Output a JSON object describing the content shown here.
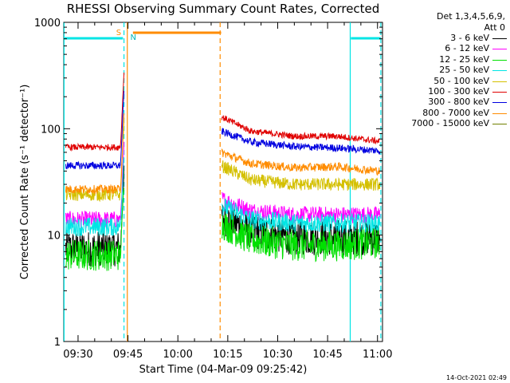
{
  "chart_data": {
    "type": "line",
    "title": "RHESSI Observing Summary Count Rates, Corrected",
    "xlabel": "Start Time (04-Mar-09 09:25:42)",
    "ylabel": "Corrected Count Rate (s⁻¹ detector⁻¹)",
    "yscale": "log",
    "ylim": [
      1,
      1000
    ],
    "ytick_labels": [
      "1",
      "10",
      "100",
      "1000"
    ],
    "xtick_labels": [
      "09:30",
      "09:45",
      "10:00",
      "10:15",
      "10:30",
      "10:45",
      "11:00"
    ],
    "xrange_minutes": [
      25.7,
      121.5
    ],
    "legend_header": [
      "Det 1,3,4,5,6,9,",
      "Att 0"
    ],
    "legend_position": "top-right, outside plot",
    "gap_minutes": [
      44.5,
      73.0
    ],
    "series": [
      {
        "name": "3 - 6 keV",
        "color": "#000000",
        "pre": 7.5,
        "post": [
          15,
          11,
          9.5,
          9.5,
          9.5
        ],
        "noise": 0.17
      },
      {
        "name": "6 - 12 keV",
        "color": "#ff00ff",
        "pre": 14,
        "post": [
          22,
          17,
          15.5,
          15.5,
          15.5
        ],
        "noise": 0.08
      },
      {
        "name": "12 - 25 keV",
        "color": "#00e000",
        "pre": 6.5,
        "post": [
          13,
          9,
          8,
          8,
          8.5
        ],
        "noise": 0.15
      },
      {
        "name": "25 - 50 keV",
        "color": "#00e5e5",
        "pre": 12,
        "post": [
          19,
          14,
          13,
          13,
          13
        ],
        "noise": 0.09
      },
      {
        "name": "50 - 100 keV",
        "color": "#d4c000",
        "pre": 24,
        "post": [
          45,
          33,
          30,
          30,
          30
        ],
        "noise": 0.06
      },
      {
        "name": "100 - 300 keV",
        "color": "#e00000",
        "pre": 67,
        "post": [
          130,
          95,
          85,
          85,
          76
        ],
        "noise": 0.03
      },
      {
        "name": "300 - 800 keV",
        "color": "#0000e0",
        "pre": 45,
        "post": [
          95,
          75,
          68,
          66,
          62
        ],
        "noise": 0.035
      },
      {
        "name": "800 - 7000 keV",
        "color": "#ff8c00",
        "pre": 27,
        "post": [
          60,
          47,
          43,
          44,
          40
        ],
        "noise": 0.04
      },
      {
        "name": "7000 - 15000 keV",
        "color": "#708000",
        "pre": null,
        "post": null,
        "noise": 0
      }
    ],
    "flags": {
      "saa_label": "S",
      "night_label": "N",
      "cyan_bars_minutes": [
        [
          25.7,
          43.5
        ],
        [
          112.0,
          121.0
        ]
      ],
      "orange_bar_minutes": [
        46.5,
        73.0
      ],
      "vlines": [
        {
          "t": 25.8,
          "color": "#00e5e5",
          "style": "solid"
        },
        {
          "t": 43.8,
          "color": "#00e5e5",
          "style": "dashed"
        },
        {
          "t": 44.8,
          "color": "#ff8c00",
          "style": "solid"
        },
        {
          "t": 72.7,
          "color": "#ff8c00",
          "style": "dashed"
        },
        {
          "t": 111.8,
          "color": "#00e5e5",
          "style": "solid"
        },
        {
          "t": 121.0,
          "color": "#00e5e5",
          "style": "dashed"
        }
      ]
    }
  },
  "timestamp": "14-Oct-2021 02:49"
}
